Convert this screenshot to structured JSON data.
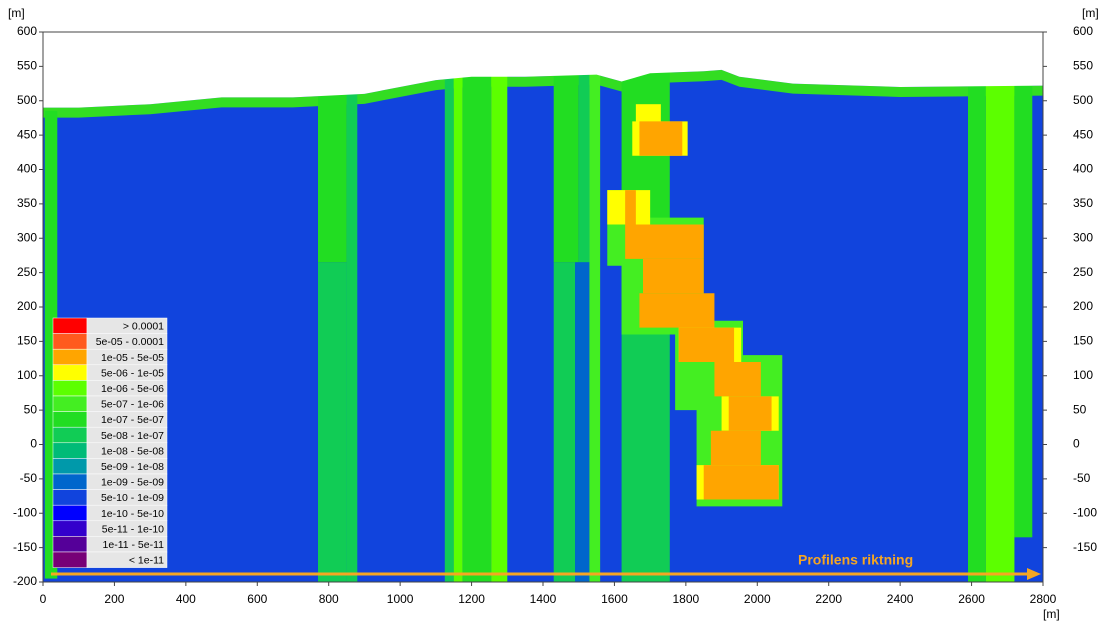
{
  "chart_data": {
    "type": "section",
    "x_label": "[m]",
    "y_label": "[m]",
    "y2_label": "[m]",
    "xlim": [
      0,
      2800
    ],
    "xticks": [
      0,
      200,
      400,
      600,
      800,
      1000,
      1200,
      1400,
      1600,
      1800,
      2000,
      2200,
      2400,
      2600,
      2800
    ],
    "ylim": [
      -200,
      600
    ],
    "yticks": [
      -200,
      -150,
      -100,
      -50,
      0,
      50,
      100,
      150,
      200,
      250,
      300,
      350,
      400,
      450,
      500,
      550,
      600
    ],
    "y2lim": [
      -200,
      600
    ],
    "y2ticks": [
      -150,
      -100,
      -50,
      0,
      50,
      100,
      150,
      200,
      250,
      300,
      350,
      400,
      450,
      500,
      550,
      600
    ],
    "background_color": "#1144dd",
    "surface_color": "#33dd22",
    "surface": {
      "x": [
        0,
        100,
        300,
        500,
        700,
        900,
        1100,
        1200,
        1350,
        1550,
        1620,
        1700,
        1850,
        1900,
        1950,
        2100,
        2400,
        2800
      ],
      "y": [
        490,
        490,
        495,
        505,
        505,
        510,
        530,
        535,
        535,
        538,
        528,
        540,
        543,
        545,
        535,
        525,
        520,
        522
      ]
    },
    "zones": [
      {
        "x": [
          5,
          40
        ],
        "y": [
          -195,
          485
        ],
        "color": "#22dd22"
      },
      {
        "x": [
          770,
          850
        ],
        "y": [
          265,
          560
        ],
        "color": "#22dd22"
      },
      {
        "x": [
          770,
          850
        ],
        "y": [
          -200,
          265
        ],
        "color": "#11cc55"
      },
      {
        "x": [
          850,
          880
        ],
        "y": [
          -200,
          560
        ],
        "color": "#11cc55"
      },
      {
        "x": [
          1125,
          1150
        ],
        "y": [
          -200,
          560
        ],
        "color": "#11cc55"
      },
      {
        "x": [
          1150,
          1175
        ],
        "y": [
          -200,
          560
        ],
        "color": "#5cff00"
      },
      {
        "x": [
          1175,
          1255
        ],
        "y": [
          -200,
          560
        ],
        "color": "#22dd22"
      },
      {
        "x": [
          1255,
          1300
        ],
        "y": [
          -200,
          560
        ],
        "color": "#5cff00"
      },
      {
        "x": [
          1430,
          1500
        ],
        "y": [
          265,
          560
        ],
        "color": "#22dd22"
      },
      {
        "x": [
          1430,
          1490
        ],
        "y": [
          -200,
          265
        ],
        "color": "#11cc55"
      },
      {
        "x": [
          1500,
          1530
        ],
        "y": [
          265,
          560
        ],
        "color": "#11cc55"
      },
      {
        "x": [
          1490,
          1530
        ],
        "y": [
          -200,
          265
        ],
        "color": "#0066cc"
      },
      {
        "x": [
          1530,
          1560
        ],
        "y": [
          -200,
          560
        ],
        "color": "#44ee22"
      },
      {
        "x": [
          1620,
          1755
        ],
        "y": [
          165,
          560
        ],
        "color": "#22dd22"
      },
      {
        "x": [
          1620,
          1755
        ],
        "y": [
          -200,
          165
        ],
        "color": "#11cc55"
      },
      {
        "x": [
          1580,
          1700
        ],
        "y": [
          260,
          370
        ],
        "color": "#44ee22"
      },
      {
        "x": [
          1620,
          1850
        ],
        "y": [
          160,
          330
        ],
        "color": "#44ee22"
      },
      {
        "x": [
          1770,
          1960
        ],
        "y": [
          50,
          180
        ],
        "color": "#44ee22"
      },
      {
        "x": [
          1830,
          2070
        ],
        "y": [
          -90,
          130
        ],
        "color": "#44ee22"
      },
      {
        "x": [
          1660,
          1730
        ],
        "y": [
          450,
          495
        ],
        "color": "#ffff00"
      },
      {
        "x": [
          1650,
          1805
        ],
        "y": [
          420,
          470
        ],
        "color": "#ffff00"
      },
      {
        "x": [
          1670,
          1790
        ],
        "y": [
          420,
          470
        ],
        "color": "#ffa500"
      },
      {
        "x": [
          1580,
          1700
        ],
        "y": [
          320,
          370
        ],
        "color": "#ffff00"
      },
      {
        "x": [
          1630,
          1660
        ],
        "y": [
          320,
          370
        ],
        "color": "#ffa500"
      },
      {
        "x": [
          1630,
          1850
        ],
        "y": [
          270,
          320
        ],
        "color": "#ffa500"
      },
      {
        "x": [
          1680,
          1850
        ],
        "y": [
          220,
          270
        ],
        "color": "#ffa500"
      },
      {
        "x": [
          1670,
          1880
        ],
        "y": [
          170,
          220
        ],
        "color": "#ffa500"
      },
      {
        "x": [
          1780,
          1955
        ],
        "y": [
          120,
          170
        ],
        "color": "#ffff00"
      },
      {
        "x": [
          1780,
          1935
        ],
        "y": [
          120,
          170
        ],
        "color": "#ffa500"
      },
      {
        "x": [
          1880,
          2010
        ],
        "y": [
          70,
          120
        ],
        "color": "#ffa500"
      },
      {
        "x": [
          1900,
          2060
        ],
        "y": [
          20,
          70
        ],
        "color": "#ffff00"
      },
      {
        "x": [
          1920,
          2040
        ],
        "y": [
          20,
          70
        ],
        "color": "#ffa500"
      },
      {
        "x": [
          1870,
          2010
        ],
        "y": [
          -30,
          20
        ],
        "color": "#ffa500"
      },
      {
        "x": [
          1830,
          2060
        ],
        "y": [
          -80,
          -30
        ],
        "color": "#ffff00"
      },
      {
        "x": [
          1850,
          2060
        ],
        "y": [
          -80,
          -30
        ],
        "color": "#ffa500"
      },
      {
        "x": [
          2590,
          2640
        ],
        "y": [
          -200,
          560
        ],
        "color": "#22dd22"
      },
      {
        "x": [
          2640,
          2720
        ],
        "y": [
          -200,
          560
        ],
        "color": "#5cff00"
      },
      {
        "x": [
          2720,
          2770
        ],
        "y": [
          -135,
          560
        ],
        "color": "#22dd22"
      }
    ],
    "legend": [
      {
        "label": "> 0.0001",
        "color": "#ff0000"
      },
      {
        "label": "5e-05 - 0.0001",
        "color": "#ff5a1e"
      },
      {
        "label": "1e-05 - 5e-05",
        "color": "#ffa500"
      },
      {
        "label": "5e-06 - 1e-05",
        "color": "#ffff00"
      },
      {
        "label": "1e-06 - 5e-06",
        "color": "#5cff00"
      },
      {
        "label": "5e-07 - 1e-06",
        "color": "#44ee22"
      },
      {
        "label": "1e-07 - 5e-07",
        "color": "#22dd22"
      },
      {
        "label": "5e-08 - 1e-07",
        "color": "#11cc55"
      },
      {
        "label": "1e-08 - 5e-08",
        "color": "#00bb77"
      },
      {
        "label": "5e-09 - 1e-08",
        "color": "#0099aa"
      },
      {
        "label": "1e-09 - 5e-09",
        "color": "#0066cc"
      },
      {
        "label": "5e-10 - 1e-09",
        "color": "#1144dd"
      },
      {
        "label": "1e-10 - 5e-10",
        "color": "#0000ff"
      },
      {
        "label": "5e-11 - 1e-10",
        "color": "#3300cc"
      },
      {
        "label": "1e-11 - 5e-11",
        "color": "#550099"
      },
      {
        "label": "< 1e-11",
        "color": "#770077"
      }
    ],
    "annotation": "Profilens riktning",
    "annotation_color": "#f5a623"
  }
}
